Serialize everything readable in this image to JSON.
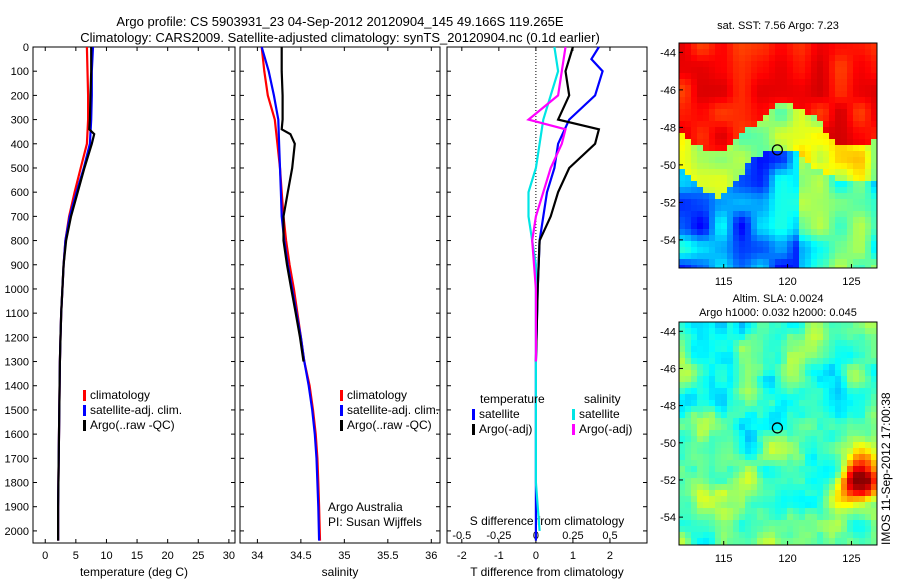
{
  "title_line1": "Argo profile: CS 5903931_23 04-Sep-2012 20120904_145 49.166S 119.265E",
  "title_line2": "Climatology: CARS2009. Satellite-adjusted climatology: synTS_20120904.nc (0.1d earlier)",
  "side_stamp": "IMOS 11-Sep-2012 17:00:38",
  "colors": {
    "climatology": "#ff0000",
    "satellite": "#0000ff",
    "argo": "#000000",
    "cyan": "#00e5e5",
    "magenta": "#ff00ff"
  },
  "chart_data": [
    {
      "type": "line",
      "id": "temperature",
      "xlabel": "temperature (deg C)",
      "xlim": [
        -2,
        31
      ],
      "ylim": [
        0,
        2050
      ],
      "y_reversed": true,
      "xticks": [
        0,
        5,
        10,
        15,
        20,
        25,
        30
      ],
      "yticks": [
        0,
        100,
        200,
        300,
        400,
        500,
        600,
        700,
        800,
        900,
        1000,
        1100,
        1200,
        1300,
        1400,
        1500,
        1600,
        1700,
        1800,
        1900,
        2000
      ],
      "legend": [
        "climatology",
        "satellite-adj. clim.",
        "Argo(..raw -QC)"
      ],
      "series": [
        {
          "name": "climatology",
          "color": "climatology",
          "points": [
            [
              6.8,
              0
            ],
            [
              6.9,
              100
            ],
            [
              7.0,
              200
            ],
            [
              7.0,
              300
            ],
            [
              6.8,
              400
            ],
            [
              5.8,
              500
            ],
            [
              4.8,
              600
            ],
            [
              3.9,
              700
            ],
            [
              3.3,
              800
            ],
            [
              3.0,
              900
            ],
            [
              2.8,
              1000
            ],
            [
              2.6,
              1100
            ],
            [
              2.5,
              1200
            ],
            [
              2.4,
              1300
            ],
            [
              2.3,
              1500
            ],
            [
              2.2,
              1700
            ],
            [
              2.1,
              1900
            ],
            [
              2.1,
              2040
            ]
          ]
        },
        {
          "name": "satellite-adj. clim.",
          "color": "satellite",
          "points": [
            [
              7.8,
              0
            ],
            [
              7.6,
              100
            ],
            [
              7.6,
              200
            ],
            [
              7.5,
              300
            ],
            [
              7.3,
              400
            ],
            [
              6.3,
              500
            ],
            [
              5.1,
              600
            ],
            [
              4.0,
              700
            ],
            [
              3.3,
              800
            ],
            [
              3.0,
              900
            ],
            [
              2.8,
              1000
            ],
            [
              2.6,
              1100
            ],
            [
              2.5,
              1200
            ],
            [
              2.4,
              1300
            ],
            [
              2.3,
              1500
            ],
            [
              2.2,
              1700
            ],
            [
              2.1,
              1900
            ],
            [
              2.1,
              2040
            ]
          ]
        },
        {
          "name": "Argo(..raw -QC)",
          "color": "argo",
          "points": [
            [
              7.5,
              0
            ],
            [
              7.5,
              100
            ],
            [
              7.4,
              200
            ],
            [
              7.3,
              300
            ],
            [
              7.2,
              340
            ],
            [
              8.0,
              360
            ],
            [
              7.6,
              400
            ],
            [
              6.4,
              500
            ],
            [
              5.3,
              600
            ],
            [
              4.2,
              700
            ],
            [
              3.4,
              800
            ],
            [
              3.0,
              900
            ],
            [
              2.8,
              1000
            ],
            [
              2.6,
              1100
            ],
            [
              2.5,
              1200
            ],
            [
              2.4,
              1300
            ],
            [
              2.3,
              1500
            ],
            [
              2.2,
              1700
            ],
            [
              2.1,
              1900
            ],
            [
              2.1,
              2040
            ]
          ]
        }
      ]
    },
    {
      "type": "line",
      "id": "salinity",
      "xlabel": "salinity",
      "xlim": [
        33.8,
        36.1
      ],
      "ylim": [
        0,
        2050
      ],
      "y_reversed": true,
      "xticks": [
        34,
        34.5,
        35,
        35.5,
        36
      ],
      "legend": [
        "climatology",
        "satellite-adj. clim.",
        "Argo(..raw -QC)"
      ],
      "notes": [
        "Argo Australia",
        "PI: Susan Wijffels"
      ],
      "series": [
        {
          "name": "climatology",
          "color": "climatology",
          "points": [
            [
              34.05,
              0
            ],
            [
              34.08,
              100
            ],
            [
              34.12,
              200
            ],
            [
              34.2,
              300
            ],
            [
              34.23,
              400
            ],
            [
              34.26,
              500
            ],
            [
              34.28,
              600
            ],
            [
              34.3,
              700
            ],
            [
              34.33,
              800
            ],
            [
              34.37,
              900
            ],
            [
              34.42,
              1000
            ],
            [
              34.46,
              1100
            ],
            [
              34.5,
              1200
            ],
            [
              34.54,
              1300
            ],
            [
              34.6,
              1400
            ],
            [
              34.64,
              1500
            ],
            [
              34.67,
              1600
            ],
            [
              34.69,
              1700
            ],
            [
              34.7,
              1800
            ],
            [
              34.71,
              1900
            ],
            [
              34.72,
              2040
            ]
          ]
        },
        {
          "name": "satellite-adj. clim.",
          "color": "satellite",
          "points": [
            [
              34.05,
              0
            ],
            [
              34.13,
              100
            ],
            [
              34.19,
              200
            ],
            [
              34.24,
              300
            ],
            [
              34.25,
              400
            ],
            [
              34.26,
              500
            ],
            [
              34.27,
              600
            ],
            [
              34.28,
              700
            ],
            [
              34.31,
              800
            ],
            [
              34.35,
              900
            ],
            [
              34.4,
              1000
            ],
            [
              34.45,
              1100
            ],
            [
              34.5,
              1200
            ],
            [
              34.54,
              1300
            ],
            [
              34.59,
              1400
            ],
            [
              34.63,
              1500
            ],
            [
              34.66,
              1600
            ],
            [
              34.68,
              1700
            ],
            [
              34.69,
              1800
            ],
            [
              34.7,
              1900
            ],
            [
              34.71,
              2040
            ]
          ]
        },
        {
          "name": "Argo(..raw -QC)",
          "color": "argo",
          "points": [
            [
              34.28,
              0
            ],
            [
              34.28,
              100
            ],
            [
              34.29,
              200
            ],
            [
              34.29,
              300
            ],
            [
              34.28,
              340
            ],
            [
              34.38,
              360
            ],
            [
              34.43,
              400
            ],
            [
              34.4,
              500
            ],
            [
              34.35,
              600
            ],
            [
              34.3,
              700
            ],
            [
              34.3,
              800
            ],
            [
              34.34,
              900
            ],
            [
              34.39,
              1000
            ],
            [
              34.44,
              1100
            ],
            [
              34.49,
              1200
            ],
            [
              34.53,
              1300
            ]
          ]
        }
      ]
    },
    {
      "type": "line",
      "id": "differences",
      "xlabel": "T difference from climatology",
      "xlabel_top": "S difference from climatology",
      "xlim": [
        -2.4,
        3.0
      ],
      "ylim": [
        0,
        2050
      ],
      "y_reversed": true,
      "xticks": [
        -2,
        -1,
        0,
        1,
        2
      ],
      "xticks_top": [
        "-0.5",
        "-0.25",
        "0",
        "0.25",
        "0.5"
      ],
      "xticks_top_pos": [
        -2,
        -1,
        0,
        1,
        2
      ],
      "legend_temperature_title": "temperature",
      "legend_salinity_title": "salinity",
      "legend": [
        "satellite",
        "Argo(-adj)",
        "satellite",
        "Argo(-adj)"
      ],
      "series": [
        {
          "name": "satellite",
          "group": "temperature",
          "color": "satellite",
          "points": [
            [
              1.7,
              0
            ],
            [
              1.5,
              50
            ],
            [
              1.8,
              100
            ],
            [
              1.6,
              200
            ],
            [
              0.9,
              300
            ],
            [
              0.6,
              400
            ],
            [
              0.5,
              500
            ],
            [
              0.3,
              600
            ],
            [
              0.2,
              700
            ],
            [
              0.1,
              800
            ],
            [
              0.05,
              1000
            ],
            [
              0,
              1300
            ],
            [
              0,
              2040
            ]
          ]
        },
        {
          "name": "Argo(-adj)",
          "group": "temperature",
          "color": "argo",
          "points": [
            [
              1.0,
              0
            ],
            [
              0.8,
              100
            ],
            [
              0.9,
              200
            ],
            [
              0.6,
              300
            ],
            [
              1.7,
              340
            ],
            [
              1.6,
              400
            ],
            [
              0.9,
              500
            ],
            [
              0.6,
              600
            ],
            [
              0.4,
              700
            ],
            [
              0.1,
              800
            ],
            [
              0.05,
              1000
            ],
            [
              0,
              1300
            ]
          ]
        },
        {
          "name": "satellite",
          "group": "salinity",
          "color": "cyan",
          "points": [
            [
              0.5,
              0
            ],
            [
              0.6,
              100
            ],
            [
              0.4,
              200
            ],
            [
              0.2,
              300
            ],
            [
              0.1,
              400
            ],
            [
              0,
              500
            ],
            [
              -0.2,
              600
            ],
            [
              -0.2,
              700
            ],
            [
              -0.1,
              800
            ],
            [
              0,
              900
            ],
            [
              0,
              1000
            ],
            [
              0,
              1300
            ],
            [
              0,
              1800
            ],
            [
              0.1,
              2000
            ]
          ]
        },
        {
          "name": "Argo(-adj)",
          "group": "salinity",
          "color": "magenta",
          "points": [
            [
              0.8,
              0
            ],
            [
              0.7,
              100
            ],
            [
              0.6,
              200
            ],
            [
              -0.2,
              300
            ],
            [
              0.8,
              340
            ],
            [
              0.7,
              400
            ],
            [
              0.4,
              500
            ],
            [
              0.2,
              600
            ],
            [
              0,
              700
            ],
            [
              -0.1,
              800
            ],
            [
              0,
              1000
            ],
            [
              0,
              1300
            ]
          ]
        }
      ]
    },
    {
      "type": "heatmap",
      "id": "sst_map",
      "title": "sat. SST: 7.56 Argo: 7.23",
      "xlim": [
        111.5,
        127
      ],
      "ylim": [
        -55.5,
        -43.5
      ],
      "xticks": [
        115,
        120,
        125
      ],
      "yticks": [
        -44,
        -46,
        -48,
        -50,
        -52,
        -54
      ],
      "marker": [
        119.2,
        -49.2
      ]
    },
    {
      "type": "heatmap",
      "id": "sla_map",
      "title_lines": [
        "Altim. SLA: 0.0024",
        "Argo h1000: 0.032 h2000: 0.045"
      ],
      "xlim": [
        111.5,
        127
      ],
      "ylim": [
        -55.5,
        -43.5
      ],
      "xticks": [
        115,
        120,
        125
      ],
      "yticks": [
        -44,
        -46,
        -48,
        -50,
        -52,
        -54
      ],
      "marker": [
        119.2,
        -49.2
      ]
    }
  ]
}
